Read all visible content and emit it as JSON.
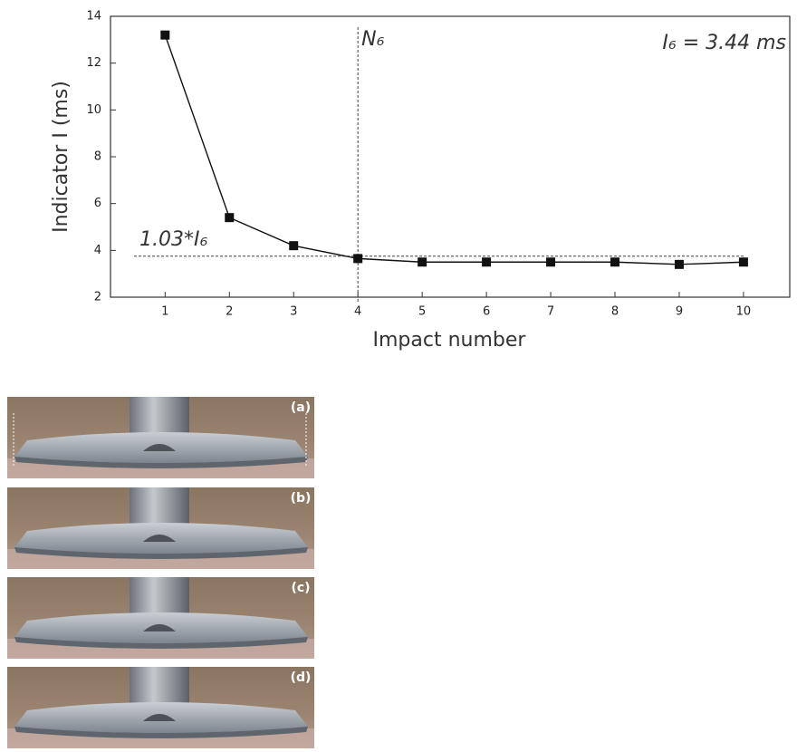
{
  "chart_data": {
    "type": "line",
    "x_label": "Impact number",
    "y_label": "Indicator I (ms)",
    "x": [
      1,
      2,
      3,
      4,
      5,
      6,
      7,
      8,
      9,
      10
    ],
    "series": [
      {
        "name": "Indicator I",
        "color": "#111111",
        "values": [
          13.2,
          5.4,
          4.2,
          3.65,
          3.5,
          3.5,
          3.5,
          3.5,
          3.4,
          3.5
        ]
      }
    ],
    "xlim": [
      0.15,
      10.72
    ],
    "ylim": [
      2,
      14
    ],
    "xticks": [
      1,
      2,
      3,
      4,
      5,
      6,
      7,
      8,
      9,
      10
    ],
    "yticks": [
      2,
      4,
      6,
      8,
      10,
      12,
      14
    ],
    "reference_x": 4,
    "reference_y": 3.75,
    "annotations": [
      "N₆",
      "I₆ = 3.44 ms",
      "1.03*I₆"
    ]
  },
  "panels": [
    "(a)",
    "(b)",
    "(c)",
    "(d)"
  ]
}
